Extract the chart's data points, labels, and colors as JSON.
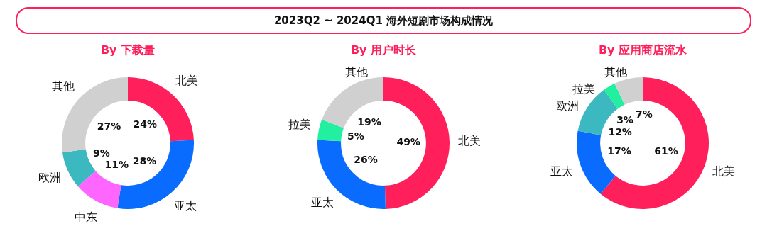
{
  "chart_data": [
    {
      "type": "other",
      "title": "2023Q2 ~ 2024Q1 海外短剧市场构成情况"
    },
    {
      "type": "donut",
      "title": "By 下载量",
      "categories": [
        "北美",
        "亚太",
        "中东",
        "欧洲",
        "其他"
      ],
      "values": [
        24,
        28,
        11,
        9,
        27
      ],
      "colors": [
        "#ff1f5a",
        "#0a6cff",
        "#ff66ff",
        "#3cb8c0",
        "#d0d0d0"
      ],
      "value_labels": [
        "24%",
        "28%",
        "11%",
        "9%",
        "27%"
      ]
    },
    {
      "type": "donut",
      "title": "By 用户时长",
      "categories": [
        "北美",
        "亚太",
        "拉美",
        "其他"
      ],
      "values": [
        49,
        26,
        5,
        19
      ],
      "colors": [
        "#ff1f5a",
        "#0a6cff",
        "#22f0a0",
        "#d0d0d0"
      ],
      "value_labels": [
        "49%",
        "26%",
        "5%",
        "19%"
      ]
    },
    {
      "type": "donut",
      "title": "By 应用商店流水",
      "categories": [
        "北美",
        "亚太",
        "欧洲",
        "拉美",
        "其他"
      ],
      "values": [
        61,
        17,
        12,
        3,
        7
      ],
      "colors": [
        "#ff1f5a",
        "#0a6cff",
        "#3cb8c0",
        "#22f0a0",
        "#d0d0d0"
      ],
      "value_labels": [
        "61%",
        "17%",
        "12%",
        "3%",
        "7%"
      ]
    }
  ]
}
